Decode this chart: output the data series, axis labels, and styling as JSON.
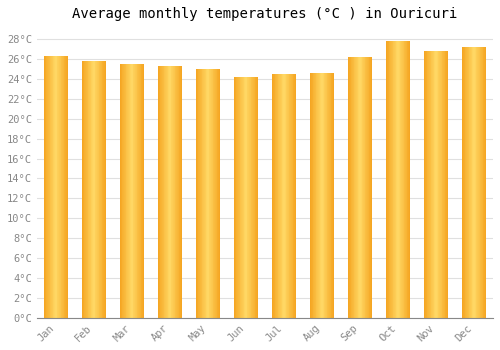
{
  "title": "Average monthly temperatures (°C ) in Ouricuri",
  "months": [
    "Jan",
    "Feb",
    "Mar",
    "Apr",
    "May",
    "Jun",
    "Jul",
    "Aug",
    "Sep",
    "Oct",
    "Nov",
    "Dec"
  ],
  "values": [
    26.3,
    25.8,
    25.5,
    25.3,
    25.0,
    24.2,
    24.5,
    24.6,
    26.2,
    27.8,
    26.8,
    27.2
  ],
  "bar_color_center": "#FFD966",
  "bar_color_edge": "#F5A623",
  "background_color": "#FFFFFF",
  "grid_color": "#E0E0E0",
  "ylim": [
    0,
    29
  ],
  "ytick_step": 2,
  "title_fontsize": 10,
  "tick_fontsize": 7.5,
  "tick_color": "#888888",
  "font_family": "monospace"
}
